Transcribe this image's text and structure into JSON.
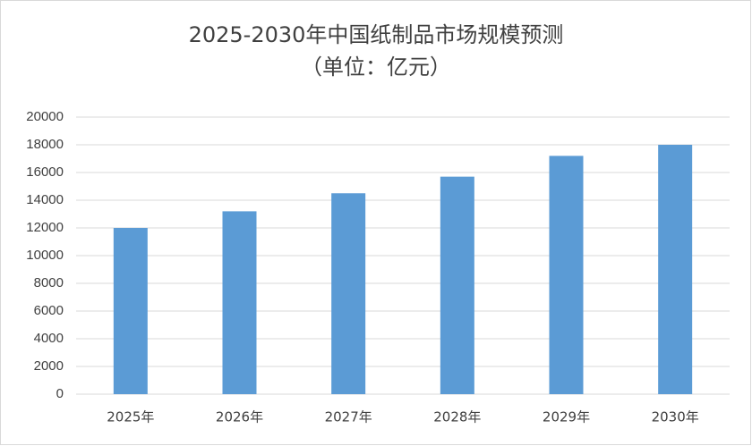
{
  "chart_data": {
    "type": "bar",
    "title": "2025-2030年中国纸制品市场规模预测",
    "subtitle": "（单位：亿元）",
    "categories": [
      "2025年",
      "2026年",
      "2027年",
      "2028年",
      "2029年",
      "2030年"
    ],
    "values": [
      12000,
      13200,
      14500,
      15700,
      17200,
      18000
    ],
    "color": "#5b9bd5",
    "ylim": [
      0,
      20000
    ],
    "yticks": [
      0,
      2000,
      4000,
      6000,
      8000,
      10000,
      12000,
      14000,
      16000,
      18000,
      20000
    ],
    "grid": true
  }
}
